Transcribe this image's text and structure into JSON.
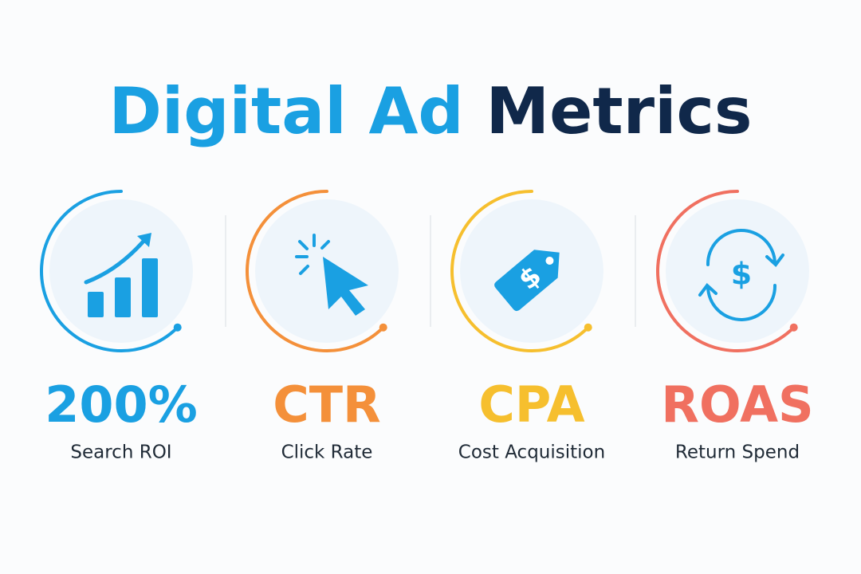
{
  "title": {
    "part1": "Digital Ad",
    "part1_color": "#1aa0e2",
    "part2": "Metrics",
    "part2_color": "#10284a"
  },
  "metrics": [
    {
      "value": "200%",
      "label": "Search ROI",
      "color": "#1aa0e2"
    },
    {
      "value": "CTR",
      "label": "Click Rate",
      "color": "#f4903a"
    },
    {
      "value": "CPA",
      "label": "Cost Acquisition",
      "color": "#f6bf2e",
      "icon_text": "$",
      "icon_color": "#1aa0e2"
    },
    {
      "value": "ROAS",
      "label": "Return Spend",
      "color": "#f07060",
      "icon_text": "$",
      "icon_color": "#1aa0e2"
    }
  ]
}
